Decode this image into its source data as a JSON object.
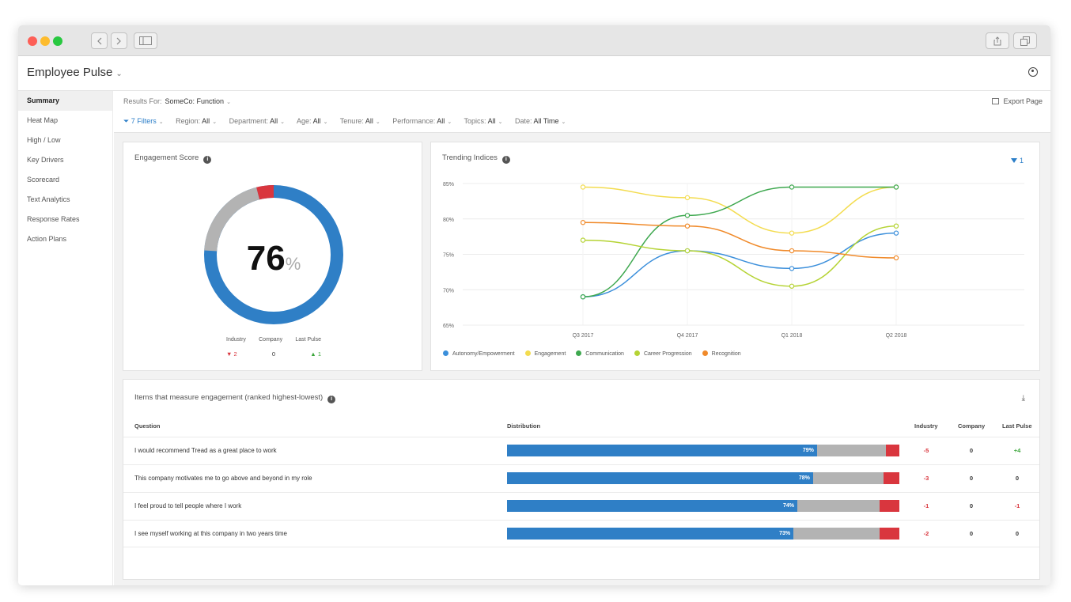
{
  "app": {
    "title": "Employee Pulse"
  },
  "sidebar": {
    "items": [
      {
        "label": "Summary"
      },
      {
        "label": "Heat Map"
      },
      {
        "label": "High / Low"
      },
      {
        "label": "Key Drivers"
      },
      {
        "label": "Scorecard"
      },
      {
        "label": "Text Analytics"
      },
      {
        "label": "Response Rates"
      },
      {
        "label": "Action Plans"
      }
    ]
  },
  "results": {
    "label": "Results For:",
    "value": "SomeCo: Function",
    "export_label": "Export Page"
  },
  "filters": [
    {
      "label": "7 Filters",
      "value": ""
    },
    {
      "label": "Region:",
      "value": "All"
    },
    {
      "label": "Department:",
      "value": "All"
    },
    {
      "label": "Age:",
      "value": "All"
    },
    {
      "label": "Tenure:",
      "value": "All"
    },
    {
      "label": "Performance:",
      "value": "All"
    },
    {
      "label": "Topics:",
      "value": "All"
    },
    {
      "label": "Date:",
      "value": "All Time"
    }
  ],
  "engagement": {
    "title": "Engagement Score",
    "score": "76",
    "unit": "%",
    "donut": {
      "positive": 76,
      "neutral": 20,
      "negative": 4
    },
    "comparisons": [
      {
        "label": "Industry",
        "value": "2",
        "trend": "down"
      },
      {
        "label": "Company",
        "value": "0",
        "trend": "none"
      },
      {
        "label": "Last Pulse",
        "value": "1",
        "trend": "up"
      }
    ]
  },
  "trending": {
    "title": "Trending Indices",
    "filter_count": "1"
  },
  "chart_data": {
    "type": "line",
    "title": "Trending Indices",
    "x": [
      "Q3 2017",
      "Q4 2017",
      "Q1 2018",
      "Q2 2018"
    ],
    "y_ticks": [
      "85%",
      "80%",
      "75%",
      "70%",
      "65%"
    ],
    "ylim": [
      65,
      85
    ],
    "grid": true,
    "legend_position": "bottom",
    "series": [
      {
        "name": "Autonomy/Empowerment",
        "color": "#3b8fdb",
        "values": [
          69,
          75.5,
          73,
          78
        ]
      },
      {
        "name": "Engagement",
        "color": "#f3dc4f",
        "values": [
          84.5,
          83,
          78,
          84.5
        ]
      },
      {
        "name": "Communication",
        "color": "#3ea84f",
        "values": [
          69,
          80.5,
          84.5,
          84.5
        ]
      },
      {
        "name": "Career Progression",
        "color": "#b5d334",
        "values": [
          77,
          75.5,
          70.5,
          79
        ]
      },
      {
        "name": "Recognition",
        "color": "#f08a2a",
        "values": [
          79.5,
          79,
          75.5,
          74.5
        ]
      }
    ]
  },
  "items": {
    "title": "Items that measure engagement (ranked highest-lowest)",
    "headers": {
      "question": "Question",
      "distribution": "Distribution",
      "industry": "Industry",
      "company": "Company",
      "last_pulse": "Last Pulse"
    },
    "rows": [
      {
        "question": "I would recommend Tread as a great place to work",
        "positive": 79,
        "pos_label": "79%",
        "neutral": 17.5,
        "negative": 3.5,
        "industry": "-5",
        "company": "0",
        "last_pulse": "+4"
      },
      {
        "question": "This company motivates me to go above and beyond in my role",
        "positive": 78,
        "pos_label": "78%",
        "neutral": 18,
        "negative": 4,
        "industry": "-3",
        "company": "0",
        "last_pulse": "0"
      },
      {
        "question": "I feel proud to tell people where I work",
        "positive": 74,
        "pos_label": "74%",
        "neutral": 21,
        "negative": 5,
        "industry": "-1",
        "company": "0",
        "last_pulse": "-1"
      },
      {
        "question": "I see myself working at this company in two years time",
        "positive": 73,
        "pos_label": "73%",
        "neutral": 22,
        "negative": 5,
        "industry": "-2",
        "company": "0",
        "last_pulse": "0"
      }
    ]
  },
  "colors": {
    "positive": "#2f7fc6",
    "neutral": "#b3b3b3",
    "negative": "#d9363e",
    "good": "#3aa53a",
    "bad": "#d9363e",
    "mac_red": "#fd5f57",
    "mac_yellow": "#fdbc2e",
    "mac_green": "#28c840"
  }
}
